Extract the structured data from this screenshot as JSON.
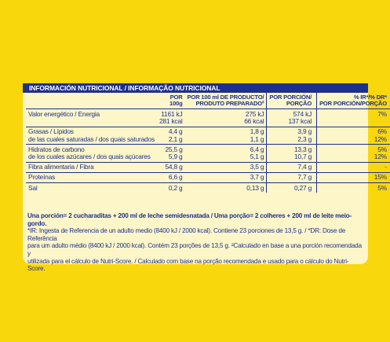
{
  "header": {
    "title": "INFORMACIÓN NUTRICIONAL / INFORMAÇÃO NUTRICIONAL",
    "col_100_l1": "POR",
    "col_100_l2": "100g",
    "col_prep_l1": "POR 100 ml DE PRODUCTO/",
    "col_prep_l2": "PRODUTO PREPARADO²",
    "col_portion_l1": "POR PORCIÓN/",
    "col_portion_l2": "PORÇÃO",
    "col_ir_l1": "% IR*/% DR*",
    "col_ir_l2": "POR PORCIÓN/PORÇÃO"
  },
  "rows": [
    {
      "name": "Valor energético / Energia",
      "name2": "",
      "v100": "1161 kJ",
      "v100b": "281 kcal",
      "prep": "275 kJ",
      "prepb": "66 kcal",
      "portion": "574 kJ",
      "portionb": "137 kcal",
      "ir": "7%",
      "irb": ""
    },
    {
      "name": "Grasas / Lípidos",
      "name2": "de las cuales saturadas / dos quais saturados",
      "v100": "4,4 g",
      "v100b": "2,1 g",
      "prep": "1,8 g",
      "prepb": "1,1 g",
      "portion": "3,9 g",
      "portionb": "2,3 g",
      "ir": "6%",
      "irb": "12%"
    },
    {
      "name": "Hidratos de carbono",
      "name2": "de los cuales azúcares / dos quais açúcares",
      "v100": "25,5 g",
      "v100b": "5,9 g",
      "prep": "6,4 g",
      "prepb": "5,1 g",
      "portion": "13,3 g",
      "portionb": "10,7 g",
      "ir": "5%",
      "irb": "12%"
    },
    {
      "name": "Fibra alimentaria / Fibra",
      "name2": "",
      "v100": "54,8 g",
      "v100b": "",
      "prep": "3,5 g",
      "prepb": "",
      "portion": "7,4 g",
      "portionb": "",
      "ir": "-",
      "irb": ""
    },
    {
      "name": "Proteínas",
      "name2": "",
      "v100": "6,6 g",
      "v100b": "",
      "prep": "3,7 g",
      "prepb": "",
      "portion": "7,7 g",
      "portionb": "",
      "ir": "15%",
      "irb": ""
    },
    {
      "name": "Sal",
      "name2": "",
      "v100": "0,2 g",
      "v100b": "",
      "prep": "0,13 g",
      "prepb": "",
      "portion": "0,27 g",
      "portionb": "",
      "ir": "5%",
      "irb": ""
    }
  ],
  "footer": {
    "portion_note": "Una porción= 2 cucharaditas + 200 ml de leche semidesnatada / Uma porção= 2 colheres + 200 ml de leite meio-gordo.",
    "line1": "*IR: Ingesta de Referencia de un adulto medio (8400 kJ / 2000 kcal). Contiene 23 porciones de 13,5 g. / *DR: Dose de Referência",
    "line2": "para um adulto médio (8400 kJ / 2000 kcal). Contém 23 porções de 13,5 g. ²Calculado en base a una porción recomendada y",
    "line3": "utilizada para el cálculo de Nutri-Score. / Calculado com base na porção recomendada e usado para o cálculo do Nutri-Score."
  },
  "colors": {
    "background": "#f9d70d",
    "label": "#fcf6c9",
    "ink": "#1f2f8f"
  }
}
